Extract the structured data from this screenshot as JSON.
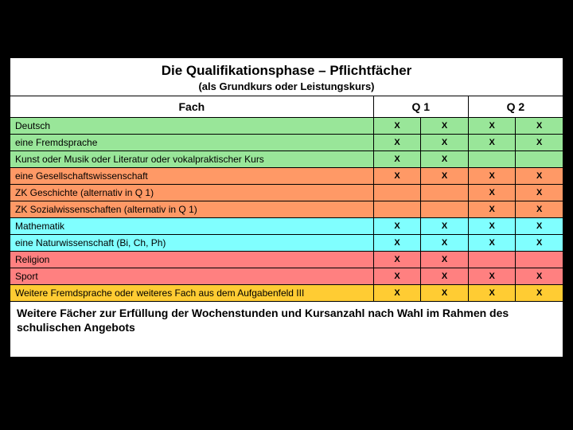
{
  "title": "Die Qualifikationsphase – Pflichtfächer",
  "subtitle": "(als Grundkurs oder Leistungskurs)",
  "headers": {
    "fach": "Fach",
    "q1": "Q 1",
    "q2": "Q 2"
  },
  "colors": {
    "green": "#99e699",
    "orange": "#ff9966",
    "cyan": "#80ffff",
    "salmon": "#ff8080",
    "yellow": "#ffcc33"
  },
  "rows": [
    {
      "label": "Deutsch",
      "color": "green",
      "marks": [
        "X",
        "X",
        "X",
        "X"
      ]
    },
    {
      "label": "eine  Fremdsprache",
      "color": "green",
      "marks": [
        "X",
        "X",
        "X",
        "X"
      ]
    },
    {
      "label": "Kunst oder Musik oder Literatur oder vokalpraktischer Kurs",
      "color": "green",
      "marks": [
        "X",
        "X",
        "",
        ""
      ]
    },
    {
      "label": "eine Gesellschaftswissenschaft",
      "color": "orange",
      "marks": [
        "X",
        "X",
        "X",
        "X"
      ]
    },
    {
      "label": "ZK Geschichte (alternativ in Q 1)",
      "color": "orange",
      "marks": [
        "",
        "",
        "X",
        "X"
      ]
    },
    {
      "label": "ZK Sozialwissenschaften (alternativ in Q 1)",
      "color": "orange",
      "marks": [
        "",
        "",
        "X",
        "X"
      ]
    },
    {
      "label": "Mathematik",
      "color": "cyan",
      "marks": [
        "X",
        "X",
        "X",
        "X"
      ]
    },
    {
      "label": "eine Naturwissenschaft (Bi, Ch, Ph)",
      "color": "cyan",
      "marks": [
        "X",
        "X",
        "X",
        "X"
      ]
    },
    {
      "label": "Religion",
      "color": "salmon",
      "marks": [
        "X",
        "X",
        "",
        ""
      ]
    },
    {
      "label": "Sport",
      "color": "salmon",
      "marks": [
        "X",
        "X",
        "X",
        "X"
      ]
    },
    {
      "label": "Weitere Fremdsprache oder weiteres Fach aus dem Aufgabenfeld III",
      "color": "yellow",
      "marks": [
        "X",
        "X",
        "X",
        "X"
      ]
    }
  ],
  "footer": "Weitere Fächer zur Erfüllung der Wochenstunden und Kursanzahl nach Wahl im Rahmen des schulischen Angebots"
}
